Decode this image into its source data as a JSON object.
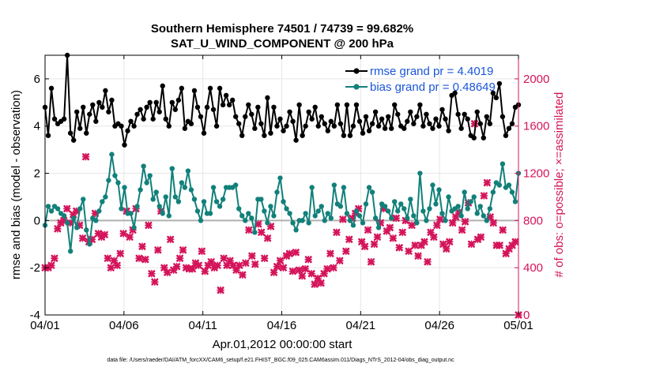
{
  "chart_data": {
    "type": "line",
    "title": "Southern Hemisphere 74501 / 74739 = 99.682%",
    "subtitle": "SAT_U_WIND_COMPONENT @ 200 hPa",
    "xlabel": "Apr.01,2012 00:00:00 start",
    "ylabel": "rmse and bias (model - observation)",
    "ylabel_right": "# of obs: o=possible; ×=assimilated",
    "x_ticks": [
      "04/01",
      "04/06",
      "04/11",
      "04/16",
      "04/21",
      "04/26",
      "05/01"
    ],
    "x_range_days": [
      0,
      30
    ],
    "ylim": [
      -4,
      7
    ],
    "y_ticks": [
      "-4",
      "-2",
      "0",
      "2",
      "4",
      "6"
    ],
    "ylim_right": [
      0,
      2200
    ],
    "y_ticks_right": [
      "0",
      "400",
      "800",
      "1200",
      "1600",
      "2000"
    ],
    "grid": true,
    "legend": "top-right",
    "colors": {
      "rmse": "#000000",
      "bias": "#12807a",
      "obs": "#d4145a",
      "zero": "#b0b0b0",
      "right_axis": "#d4145a"
    },
    "series": [
      {
        "name": "rmse grand pr = 4.4019",
        "axis": "left",
        "values": [
          4.8,
          3.6,
          5.6,
          4.3,
          4.1,
          4.2,
          4.3,
          7.0,
          3.7,
          3.4,
          4.6,
          3.9,
          4.8,
          3.7,
          4.5,
          4.9,
          4.2,
          5.0,
          4.8,
          5.5,
          4.6,
          5.1,
          4.0,
          4.1,
          4.0,
          3.2,
          3.8,
          4.2,
          4.0,
          4.5,
          4.7,
          4.3,
          4.8,
          5.0,
          4.3,
          5.0,
          4.6,
          5.7,
          4.3,
          4.0,
          5.0,
          4.7,
          5.1,
          5.6,
          3.9,
          4.2,
          4.1,
          5.5,
          4.8,
          4.4,
          3.7,
          4.8,
          5.6,
          4.7,
          4.0,
          5.6,
          4.9,
          5.3,
          4.9,
          5.1,
          4.4,
          4.1,
          3.6,
          4.4,
          4.9,
          4.5,
          3.9,
          4.8,
          4.1,
          3.6,
          5.2,
          3.7,
          4.8,
          4.0,
          4.3,
          3.8,
          4.0,
          4.6,
          4.2,
          3.4,
          4.9,
          3.6,
          4.0,
          4.6,
          4.3,
          4.8,
          4.0,
          4.4,
          4.1,
          3.8,
          4.2,
          4.0,
          4.9,
          4.1,
          3.6,
          4.9,
          3.6,
          4.0,
          4.9,
          4.2,
          3.7,
          4.4,
          3.8,
          4.1,
          4.6,
          4.0,
          4.3,
          3.9,
          4.4,
          3.9,
          4.9,
          4.5,
          4.0,
          3.9,
          4.2,
          4.6,
          4.1,
          4.4,
          4.9,
          4.0,
          4.5,
          4.1,
          3.9,
          4.3,
          4.0,
          4.7,
          4.3,
          3.8,
          5.3,
          5.4,
          4.5,
          3.9,
          4.5,
          4.3,
          3.6,
          3.5,
          4.6,
          4.1,
          3.5,
          4.4,
          4.1,
          5.4,
          5.2,
          5.8,
          4.4,
          3.6,
          3.9,
          4.1,
          4.8,
          4.9
        ]
      },
      {
        "name": "bias grand pr = 0.48649",
        "axis": "left",
        "values": [
          -0.2,
          0.6,
          0.4,
          0.6,
          0.5,
          0.3,
          0.2,
          -0.1,
          -1.3,
          0.1,
          -0.3,
          0.5,
          0.9,
          -0.4,
          -1.0,
          0.1,
          0.0,
          0.4,
          0.8,
          1.0,
          1.7,
          2.8,
          1.9,
          1.6,
          0.5,
          1.4,
          0.3,
          0.3,
          -0.3,
          0.6,
          1.3,
          2.3,
          1.6,
          1.9,
          0.9,
          1.2,
          0.6,
          0.3,
          1.0,
          0.2,
          2.2,
          1.0,
          0.8,
          1.6,
          1.4,
          2.1,
          1.3,
          0.9,
          0.4,
          0.0,
          0.8,
          0.3,
          0.3,
          1.4,
          0.8,
          0.6,
          0.9,
          1.4,
          1.4,
          1.4,
          1.5,
          0.5,
          0.2,
          0.0,
          0.3,
          0.1,
          -0.5,
          0.9,
          0.9,
          0.4,
          -0.1,
          0.6,
          0.2,
          1.2,
          1.8,
          0.8,
          0.5,
          0.3,
          -0.1,
          -0.4,
          0.0,
          0.0,
          0.3,
          -0.1,
          1.4,
          0.2,
          0.4,
          0.6,
          0.0,
          0.3,
          0.1,
          1.5,
          0.7,
          0.6,
          1.4,
          0.3,
          0.0,
          -0.2,
          0.4,
          0.2,
          -0.1,
          0.7,
          1.4,
          1.2,
          0.1,
          -0.3,
          0.7,
          0.6,
          0.4,
          0.1,
          0.8,
          0.4,
          0.7,
          0.5,
          0.1,
          0.9,
          0.2,
          -0.1,
          2.0,
          0.4,
          0.0,
          0.5,
          1.5,
          0.7,
          1.3,
          0.3,
          0.0,
          1.0,
          0.4,
          0.5,
          0.6,
          0.2,
          1.2,
          0.5,
          0.8,
          1.0,
          0.3,
          0.6,
          0.2,
          0.0,
          0.5,
          1.2,
          1.6,
          1.5,
          2.4,
          1.4,
          1.5,
          1.2,
          0.8,
          2.0
        ]
      },
      {
        "name": "assimilated",
        "axis": "right",
        "values": [
          400,
          400,
          420,
          480,
          730,
          780,
          800,
          900,
          780,
          850,
          880,
          760,
          650,
          1340,
          620,
          640,
          860,
          690,
          660,
          680,
          480,
          400,
          460,
          420,
          520,
          690,
          880,
          660,
          720,
          900,
          480,
          580,
          470,
          760,
          350,
          280,
          550,
          880,
          400,
          360,
          640,
          380,
          410,
          480,
          550,
          400,
          390,
          390,
          440,
          420,
          540,
          370,
          420,
          450,
          400,
          420,
          210,
          480,
          420,
          460,
          420,
          380,
          420,
          340,
          440,
          720,
          500,
          430,
          770,
          700,
          480,
          650,
          750,
          360,
          410,
          460,
          400,
          500,
          520,
          370,
          530,
          380,
          330,
          390,
          470,
          350,
          260,
          310,
          270,
          350,
          390,
          520,
          400,
          700,
          460,
          810,
          540,
          640,
          820,
          860,
          900,
          620,
          580,
          720,
          450,
          600,
          660,
          780,
          900,
          710,
          740,
          650,
          820,
          570,
          700,
          800,
          540,
          760,
          590,
          500,
          590,
          620,
          450,
          700,
          660,
          760,
          810,
          600,
          560,
          620,
          780,
          830,
          870,
          720,
          790,
          950,
          600,
          1620,
          640,
          660,
          1010,
          1120,
          830,
          780,
          590,
          590,
          720,
          520,
          560,
          590,
          620,
          0
        ]
      }
    ],
    "footnote": "data file: /Users/raeder/DAI/ATM_forcXX/CAM6_setup/f.e21.FHIST_BGC.f09_025.CAM6assim.011/Diags_NTrS_2012-04/obs_diag_output.nc"
  }
}
